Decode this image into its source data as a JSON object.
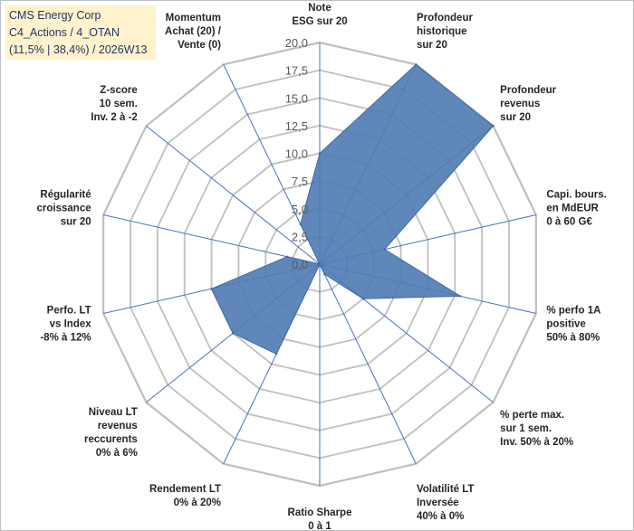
{
  "title_box": {
    "line1": "CMS Energy Corp",
    "line2": "C4_Actions / 4_OTAN",
    "line3": "(11,5% | 38,4%) / 2026W13"
  },
  "colors": {
    "fill": "#4f7ab3",
    "stroke": "#3f6aa3",
    "grid": "#bfbfbf",
    "spoke": "#4472c4",
    "title_bg": "#fff2cc",
    "title_text": "#1f3864"
  },
  "chart_data": {
    "type": "radar",
    "range": [
      0,
      20
    ],
    "tick_labels": [
      "0,0",
      "2,5",
      "5,0",
      "7,5",
      "10,0",
      "12,5",
      "15,0",
      "17,5",
      "20,0"
    ],
    "axes": [
      {
        "label": [
          "Note",
          "ESG sur 20"
        ]
      },
      {
        "label": [
          "Profondeur",
          "historique",
          "sur 20"
        ]
      },
      {
        "label": [
          "Profondeur",
          "revenus",
          "sur 20"
        ]
      },
      {
        "label": [
          "Capi. bours.",
          "en MdEUR",
          "0 à 60 G€"
        ]
      },
      {
        "label": [
          "% perfo 1A",
          "positive",
          "50% à 80%"
        ]
      },
      {
        "label": [
          "% perte max.",
          "sur 1 sem.",
          "Inv. 50% à 20%"
        ]
      },
      {
        "label": [
          "Volatilité LT",
          "Inversée",
          "40% à 0%"
        ]
      },
      {
        "label": [
          "Ratio Sharpe",
          "0 à 1"
        ]
      },
      {
        "label": [
          "Rendement LT",
          "0% à 20%"
        ]
      },
      {
        "label": [
          "Niveau LT",
          "revenus",
          "reccurents",
          "0% à 6%"
        ]
      },
      {
        "label": [
          "Perfo. LT",
          "vs Index",
          "-8% à 12%"
        ]
      },
      {
        "label": [
          "Régularité",
          "croissance",
          "sur 20"
        ]
      },
      {
        "label": [
          "Z-score",
          "10 sem.",
          "Inv. 2 à -2"
        ]
      },
      {
        "label": [
          "Momentum",
          "Achat (20) /",
          "Vente (0)"
        ]
      }
    ],
    "values": [
      10,
      20,
      20,
      6,
      13,
      5,
      1,
      0,
      9,
      10,
      10,
      3,
      0,
      4
    ],
    "legend": "none"
  }
}
